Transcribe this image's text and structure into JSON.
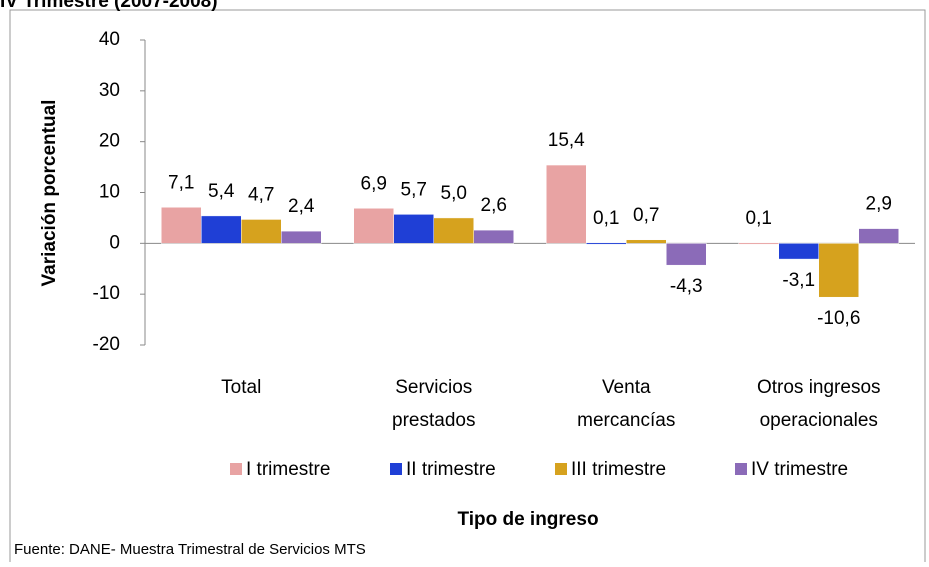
{
  "chart_data": {
    "type": "bar",
    "title": "IV Trimestre (2007-2008)",
    "y_label": "Variación porcentual",
    "x_label": "Tipo de ingreso",
    "source": "Fuente: DANE- Muestra Trimestral de Servicios MTS",
    "categories": [
      [
        "Total"
      ],
      [
        "Servicios",
        "prestados"
      ],
      [
        "Venta",
        "mercancías"
      ],
      [
        "Otros ingresos",
        "operacionales"
      ]
    ],
    "series": [
      {
        "name": "I trimestre",
        "color": "#e8a3a3",
        "values": [
          7.1,
          6.9,
          15.4,
          0.1
        ],
        "value_labels": [
          "7,1",
          "6,9",
          "15,4",
          "0,1"
        ]
      },
      {
        "name": "II trimestre",
        "color": "#1f3fd6",
        "values": [
          5.4,
          5.7,
          0.1,
          -3.1
        ],
        "value_labels": [
          "5,4",
          "5,7",
          "0,1",
          "-3,1"
        ]
      },
      {
        "name": "III trimestre",
        "color": "#d6a21e",
        "values": [
          4.7,
          5.0,
          0.7,
          -10.6
        ],
        "value_labels": [
          "4,7",
          "5,0",
          "0,7",
          "-10,6"
        ]
      },
      {
        "name": "IV trimestre",
        "color": "#8b6bb8",
        "values": [
          2.4,
          2.6,
          -4.3,
          2.9
        ],
        "value_labels": [
          "2,4",
          "2,6",
          "-4,3",
          "2,9"
        ]
      }
    ],
    "ylim": [
      -20,
      40
    ],
    "yticks": [
      -20,
      -10,
      0,
      10,
      20,
      30,
      40
    ]
  }
}
